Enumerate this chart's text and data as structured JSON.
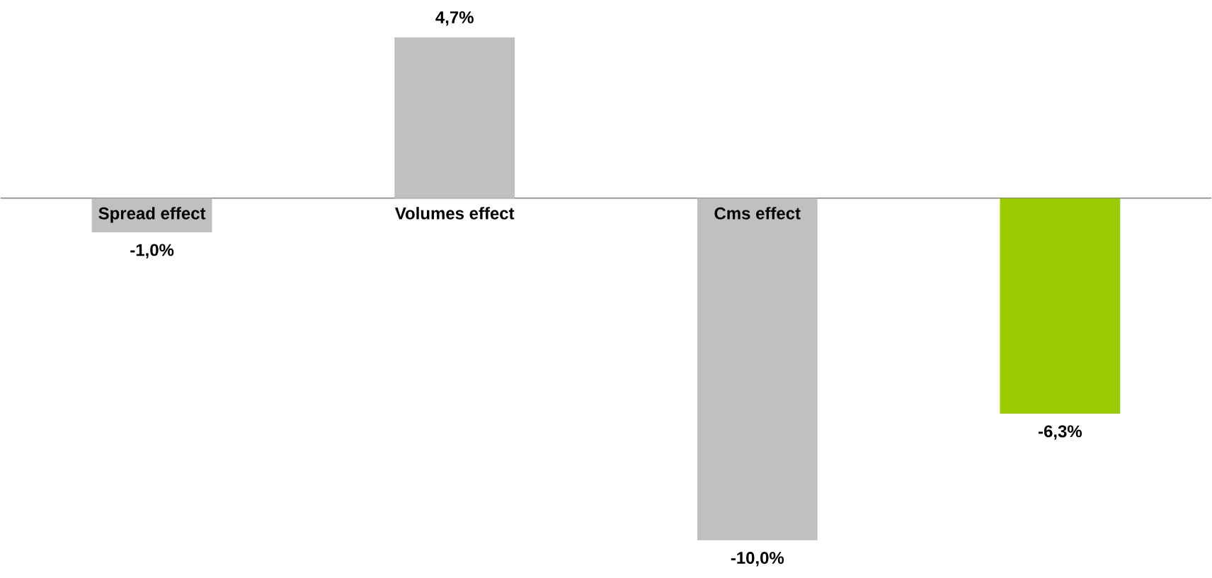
{
  "chart_data": {
    "type": "bar",
    "categories": [
      "Spread effect",
      "Volumes effect",
      "Cms effect",
      null
    ],
    "values": [
      -1.0,
      4.7,
      -10.0,
      -6.3
    ],
    "colors": [
      "#c0c0c0",
      "#c0c0c0",
      "#c0c0c0",
      "#99cc00"
    ],
    "value_labels": [
      "-1,0%",
      "4,7%",
      "-10,0%",
      "-6,3%"
    ]
  }
}
